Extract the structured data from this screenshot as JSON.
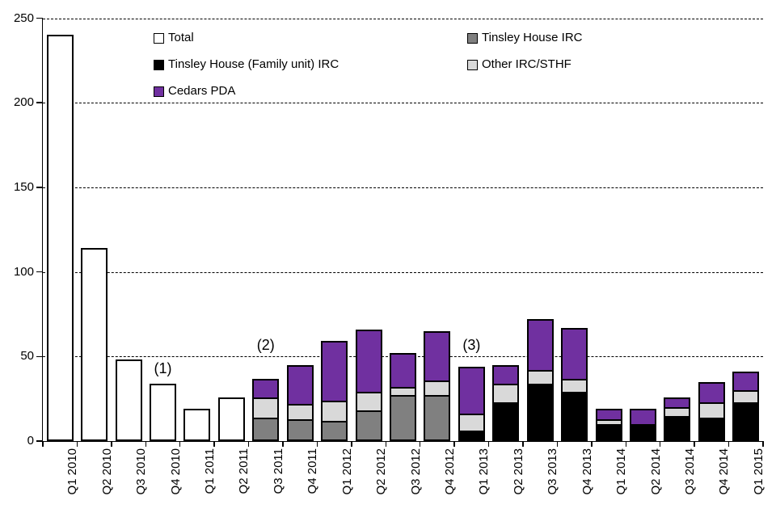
{
  "chart_data": {
    "type": "bar",
    "stacked": true,
    "title": "",
    "xlabel": "",
    "ylabel": "",
    "ylim": [
      0,
      250
    ],
    "yticks": [
      0,
      50,
      100,
      150,
      200,
      250
    ],
    "gridlines": {
      "style": "dashed",
      "at": [
        50,
        100,
        150,
        200,
        250
      ]
    },
    "legend_position": "top-inside-two-columns",
    "categories": [
      "Q1 2010",
      "Q2 2010",
      "Q3 2010",
      "Q4 2010",
      "Q1 2011",
      "Q2 2011",
      "Q3 2011",
      "Q4 2011",
      "Q1 2012",
      "Q2 2012",
      "Q3 2012",
      "Q4 2012",
      "Q1 2013",
      "Q2 2013",
      "Q3 2013",
      "Q4 2013",
      "Q1 2014",
      "Q2 2014",
      "Q3 2014",
      "Q4 2014",
      "Q1 2015"
    ],
    "series": [
      {
        "name": "Total",
        "color": "#FFFFFF",
        "values": [
          240,
          114,
          48,
          34,
          19,
          26,
          0,
          0,
          0,
          0,
          0,
          0,
          0,
          0,
          0,
          0,
          0,
          0,
          0,
          0,
          0
        ]
      },
      {
        "name": "Tinsley House IRC",
        "color": "#808080",
        "values": [
          0,
          0,
          0,
          0,
          0,
          0,
          14,
          13,
          12,
          18,
          27,
          27,
          0,
          0,
          0,
          0,
          0,
          0,
          0,
          0,
          0
        ]
      },
      {
        "name": "Tinsley House (Family unit) IRC",
        "color": "#000000",
        "values": [
          0,
          0,
          0,
          0,
          0,
          0,
          0,
          0,
          0,
          0,
          0,
          0,
          6,
          23,
          34,
          29,
          10,
          9,
          15,
          14,
          23
        ]
      },
      {
        "name": "Other IRC/STHF",
        "color": "#D9D9D9",
        "values": [
          0,
          0,
          0,
          0,
          0,
          0,
          12,
          9,
          12,
          11,
          5,
          9,
          10,
          11,
          8,
          8,
          3,
          1,
          5,
          9,
          7
        ]
      },
      {
        "name": "Cedars PDA",
        "color": "#7030A0",
        "values": [
          0,
          0,
          0,
          0,
          0,
          0,
          11,
          23,
          35,
          37,
          20,
          29,
          28,
          11,
          30,
          30,
          6,
          9,
          6,
          12,
          11
        ]
      }
    ],
    "legend": {
      "items": [
        {
          "label": "Total",
          "color": "#FFFFFF"
        },
        {
          "label": "Tinsley House IRC",
          "color": "#808080"
        },
        {
          "label": "Tinsley House (Family unit) IRC",
          "color": "#000000"
        },
        {
          "label": "Other IRC/STHF",
          "color": "#D9D9D9"
        },
        {
          "label": "Cedars PDA",
          "color": "#7030A0"
        }
      ]
    },
    "annotations": [
      {
        "text": "(1)",
        "category": "Q4 2010",
        "value": 43
      },
      {
        "text": "(2)",
        "category": "Q3 2011",
        "value": 57
      },
      {
        "text": "(3)",
        "category": "Q1 2013",
        "value": 57
      }
    ]
  }
}
